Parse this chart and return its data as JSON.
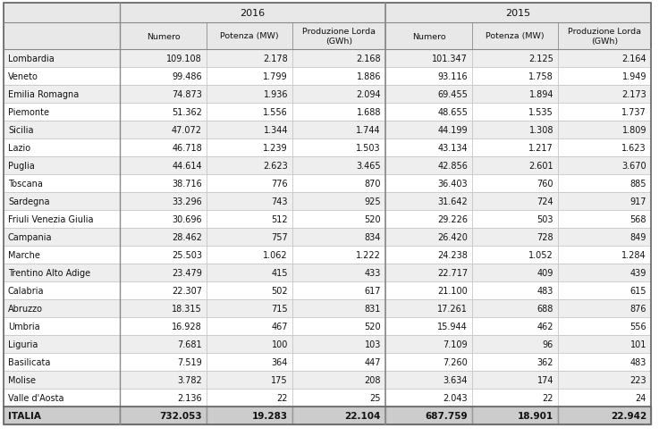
{
  "regions": [
    "Lombardia",
    "Veneto",
    "Emilia Romagna",
    "Piemonte",
    "Sicilia",
    "Lazio",
    "Puglia",
    "Toscana",
    "Sardegna",
    "Friuli Venezia Giulia",
    "Campania",
    "Marche",
    "Trentino Alto Adige",
    "Calabria",
    "Abruzzo",
    "Umbria",
    "Liguria",
    "Basilicata",
    "Molise",
    "Valle d'Aosta",
    "ITALIA"
  ],
  "data_2016": [
    [
      "109.108",
      "2.178",
      "2.168"
    ],
    [
      "99.486",
      "1.799",
      "1.886"
    ],
    [
      "74.873",
      "1.936",
      "2.094"
    ],
    [
      "51.362",
      "1.556",
      "1.688"
    ],
    [
      "47.072",
      "1.344",
      "1.744"
    ],
    [
      "46.718",
      "1.239",
      "1.503"
    ],
    [
      "44.614",
      "2.623",
      "3.465"
    ],
    [
      "38.716",
      "776",
      "870"
    ],
    [
      "33.296",
      "743",
      "925"
    ],
    [
      "30.696",
      "512",
      "520"
    ],
    [
      "28.462",
      "757",
      "834"
    ],
    [
      "25.503",
      "1.062",
      "1.222"
    ],
    [
      "23.479",
      "415",
      "433"
    ],
    [
      "22.307",
      "502",
      "617"
    ],
    [
      "18.315",
      "715",
      "831"
    ],
    [
      "16.928",
      "467",
      "520"
    ],
    [
      "7.681",
      "100",
      "103"
    ],
    [
      "7.519",
      "364",
      "447"
    ],
    [
      "3.782",
      "175",
      "208"
    ],
    [
      "2.136",
      "22",
      "25"
    ],
    [
      "732.053",
      "19.283",
      "22.104"
    ]
  ],
  "data_2015": [
    [
      "101.347",
      "2.125",
      "2.164"
    ],
    [
      "93.116",
      "1.758",
      "1.949"
    ],
    [
      "69.455",
      "1.894",
      "2.173"
    ],
    [
      "48.655",
      "1.535",
      "1.737"
    ],
    [
      "44.199",
      "1.308",
      "1.809"
    ],
    [
      "43.134",
      "1.217",
      "1.623"
    ],
    [
      "42.856",
      "2.601",
      "3.670"
    ],
    [
      "36.403",
      "760",
      "885"
    ],
    [
      "31.642",
      "724",
      "917"
    ],
    [
      "29.226",
      "503",
      "568"
    ],
    [
      "26.420",
      "728",
      "849"
    ],
    [
      "24.238",
      "1.052",
      "1.284"
    ],
    [
      "22.717",
      "409",
      "439"
    ],
    [
      "21.100",
      "483",
      "615"
    ],
    [
      "17.261",
      "688",
      "876"
    ],
    [
      "15.944",
      "462",
      "556"
    ],
    [
      "7.109",
      "96",
      "101"
    ],
    [
      "7.260",
      "362",
      "483"
    ],
    [
      "3.634",
      "174",
      "223"
    ],
    [
      "2.043",
      "22",
      "24"
    ],
    [
      "687.759",
      "18.901",
      "22.942"
    ]
  ],
  "col_headers_top": [
    "2016",
    "2015"
  ],
  "col_headers_sub": [
    "Numero",
    "Potenza (MW)",
    "Produzione Lorda\n(GWh)",
    "Numero",
    "Potenza (MW)",
    "Produzione Lorda\n(GWh)"
  ],
  "bg_color_header": "#e8e8e8",
  "bg_color_row_even": "#eeeeee",
  "bg_color_row_odd": "#ffffff",
  "bg_color_total": "#cccccc",
  "border_color": "#bbbbbb",
  "sep_color": "#999999"
}
